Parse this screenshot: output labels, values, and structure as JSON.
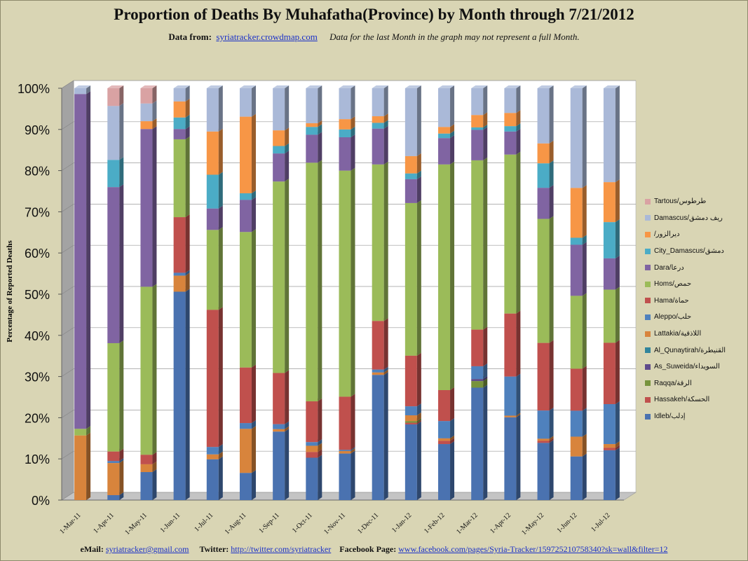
{
  "title": "Proportion of Deaths By Muhafatha(Province) by Month through 7/21/2012",
  "source": {
    "label": "Data from:",
    "link": "syriatracker.crowdmap.com",
    "note": "Data for the last Month in the graph may not represent a full Month."
  },
  "footer": {
    "email_label": "eMail:",
    "email": "syriatracker@gmail.com",
    "twitter_label": "Twitter:",
    "twitter": "http://twitter.com/syriatracker",
    "facebook_label": "Facebook  Page:",
    "facebook": "www.facebook.com/pages/Syria-Tracker/159725210758340?sk=wall&filter=12"
  },
  "chart_data": {
    "type": "bar",
    "stacked": true,
    "percent": true,
    "three_d": true,
    "title": "Proportion of Deaths By Muhafatha(Province) by Month through 7/21/2012",
    "ylabel": "Percentage of Reported Deaths",
    "xlabel": "",
    "ylim": [
      0,
      100
    ],
    "yticks": [
      "0%",
      "10%",
      "20%",
      "30%",
      "40%",
      "50%",
      "60%",
      "70%",
      "80%",
      "90%",
      "100%"
    ],
    "grid": true,
    "legend_position": "right",
    "categories": [
      "1-Mar-11",
      "1-Apr-11",
      "1-May-11",
      "1-Jun-11",
      "1-Jul-11",
      "1-Aug-11",
      "1-Sep-11",
      "1-Oct-11",
      "1-Nov-11",
      "1-Dec-11",
      "1-Jan-12",
      "1-Feb-12",
      "1-Mar-12",
      "1-Apr-12",
      "1-May-12",
      "1-Jun-12",
      "1-Jul-12"
    ],
    "series": [
      {
        "name": "Idleb/إدلب",
        "color": "#4a72b0",
        "values": [
          0,
          1.2,
          6.8,
          50.6,
          9.9,
          6.6,
          16.6,
          10.3,
          11.3,
          30.4,
          18.4,
          13.6,
          27.3,
          20.1,
          13.8,
          10.6,
          12.1
        ]
      },
      {
        "name": "Hassakeh/الحسكة",
        "color": "#c0504d",
        "values": [
          0,
          0,
          0,
          0,
          0,
          0,
          0,
          1.4,
          0,
          0,
          0.4,
          0.8,
          0,
          0,
          0.5,
          0,
          0.6
        ]
      },
      {
        "name": "Raqqa/الرقة",
        "color": "#77933c",
        "values": [
          0,
          0,
          0,
          0,
          0,
          0,
          0,
          0,
          0,
          0,
          0.4,
          0,
          1.6,
          0,
          0,
          0,
          0
        ]
      },
      {
        "name": "As_Suweida/السويداء",
        "color": "#5f4b8b",
        "values": [
          0,
          0,
          0,
          0,
          0,
          0,
          0,
          0,
          0,
          0,
          0,
          0,
          0.5,
          0,
          0,
          0,
          0
        ]
      },
      {
        "name": "Al_Qunaytirah/القنيطرة",
        "color": "#31859c",
        "values": [
          0,
          0,
          0,
          0,
          0,
          0,
          0,
          0,
          0,
          0,
          0,
          0,
          0,
          0,
          0,
          0,
          0
        ]
      },
      {
        "name": "Lattakia/اللاذقية",
        "color": "#d8843c",
        "values": [
          15.7,
          7.8,
          1.9,
          3.9,
          1.2,
          10.7,
          0.6,
          1.5,
          0.6,
          0.6,
          1.4,
          0.6,
          0,
          0.4,
          0.5,
          4.8,
          0.9
        ]
      },
      {
        "name": "Aleppo/حلب",
        "color": "#4f81bd",
        "values": [
          0,
          0.5,
          0,
          0.7,
          1.8,
          1.4,
          1.2,
          0.9,
          0.3,
          0.7,
          2.2,
          4.2,
          3.1,
          9.5,
          6.8,
          6.3,
          9.7
        ]
      },
      {
        "name": "Hama/حماة",
        "color": "#c0504d",
        "values": [
          0,
          2.3,
          2.3,
          13.5,
          33.3,
          13.5,
          12.4,
          9.9,
          12.9,
          11.8,
          12.3,
          7.5,
          8.9,
          15.3,
          16.3,
          10.2,
          14.9
        ]
      },
      {
        "name": "Homs/حمص",
        "color": "#9bbb59",
        "values": [
          1.6,
          26.3,
          40.8,
          18.9,
          19.4,
          32.9,
          46.4,
          58.0,
          54.9,
          38.0,
          37.1,
          54.8,
          41.1,
          38.6,
          29.9,
          17.7,
          12.9
        ]
      },
      {
        "name": "Dara/درعا",
        "color": "#8064a2",
        "values": [
          81.3,
          37.9,
          38.3,
          2.5,
          5.2,
          7.8,
          6.8,
          6.8,
          8.1,
          8.7,
          5.8,
          6.4,
          7.4,
          5.6,
          7.5,
          12.4,
          7.6
        ]
      },
      {
        "name": "City_Damascus/دمشق",
        "color": "#4bacc6",
        "values": [
          0,
          6.6,
          0,
          2.8,
          8.2,
          1.6,
          1.8,
          1.9,
          1.9,
          1.4,
          1.4,
          1.1,
          0.6,
          1.3,
          5.9,
          1.7,
          8.8
        ]
      },
      {
        "name": "/ديرالزور",
        "color": "#f79646",
        "values": [
          0,
          0,
          1.9,
          3.9,
          10.5,
          18.6,
          3.8,
          0.9,
          2.5,
          1.6,
          4.2,
          1.6,
          3.0,
          3.2,
          4.8,
          12.1,
          9.7
        ]
      },
      {
        "name": "Damascus/ريف دمشق",
        "color": "#aab9d8",
        "values": [
          1.4,
          13.1,
          4.3,
          3.2,
          10.5,
          6.9,
          10.2,
          8.5,
          7.5,
          6.8,
          16.5,
          9.4,
          6.5,
          6.0,
          13.3,
          24.2,
          22.8
        ]
      },
      {
        "name": "Tartous/طرطوس",
        "color": "#d9a2a3",
        "values": [
          0,
          4.3,
          3.7,
          0,
          0,
          0,
          0,
          0,
          0,
          0,
          0,
          0,
          0,
          0,
          0,
          0,
          0
        ]
      }
    ]
  }
}
